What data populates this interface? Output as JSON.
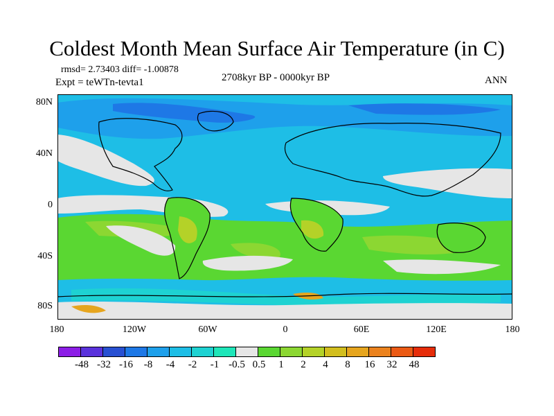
{
  "title": "Coldest Month Mean Surface Air Temperature (in C)",
  "stats": "rmsd= 2.73403 diff= -1.00878",
  "experiment": "Expt = teWTn-tevta1",
  "period": "2708kyr BP - 0000kyr BP",
  "season": "ANN",
  "y_axis": {
    "ticks": [
      "80N",
      "40N",
      "0",
      "40S",
      "80S"
    ]
  },
  "x_axis": {
    "ticks": [
      "180",
      "120W",
      "60W",
      "0",
      "60E",
      "120E",
      "180"
    ]
  },
  "colorbar": {
    "colors": [
      "#8c1ee6",
      "#5a32dc",
      "#2850d2",
      "#1e78e6",
      "#1ea0eb",
      "#1ebee6",
      "#1ed2d2",
      "#1ee6b9",
      "#e6e6e6",
      "#5ad732",
      "#8cd732",
      "#b4d228",
      "#d2be1e",
      "#e6a51e",
      "#eb821e",
      "#eb5a14",
      "#e62d0a"
    ],
    "labels": [
      "-48",
      "-32",
      "-16",
      "-8",
      "-4",
      "-2",
      "-1",
      "-0.5",
      "0.5",
      "1",
      "2",
      "4",
      "8",
      "16",
      "32",
      "48"
    ]
  },
  "map_colors": {
    "ocean_white": "#e6e6e6",
    "cold_light": "#1ebee6",
    "cold_mid": "#1ea0eb",
    "cold_deep": "#1e78e6",
    "cyan": "#1ed2d2",
    "warm_green": "#5ad732",
    "warm_yellowgreen": "#8cd732",
    "warm_yellow": "#b4d228",
    "warm_orange": "#e6a51e",
    "coast": "#000000"
  }
}
